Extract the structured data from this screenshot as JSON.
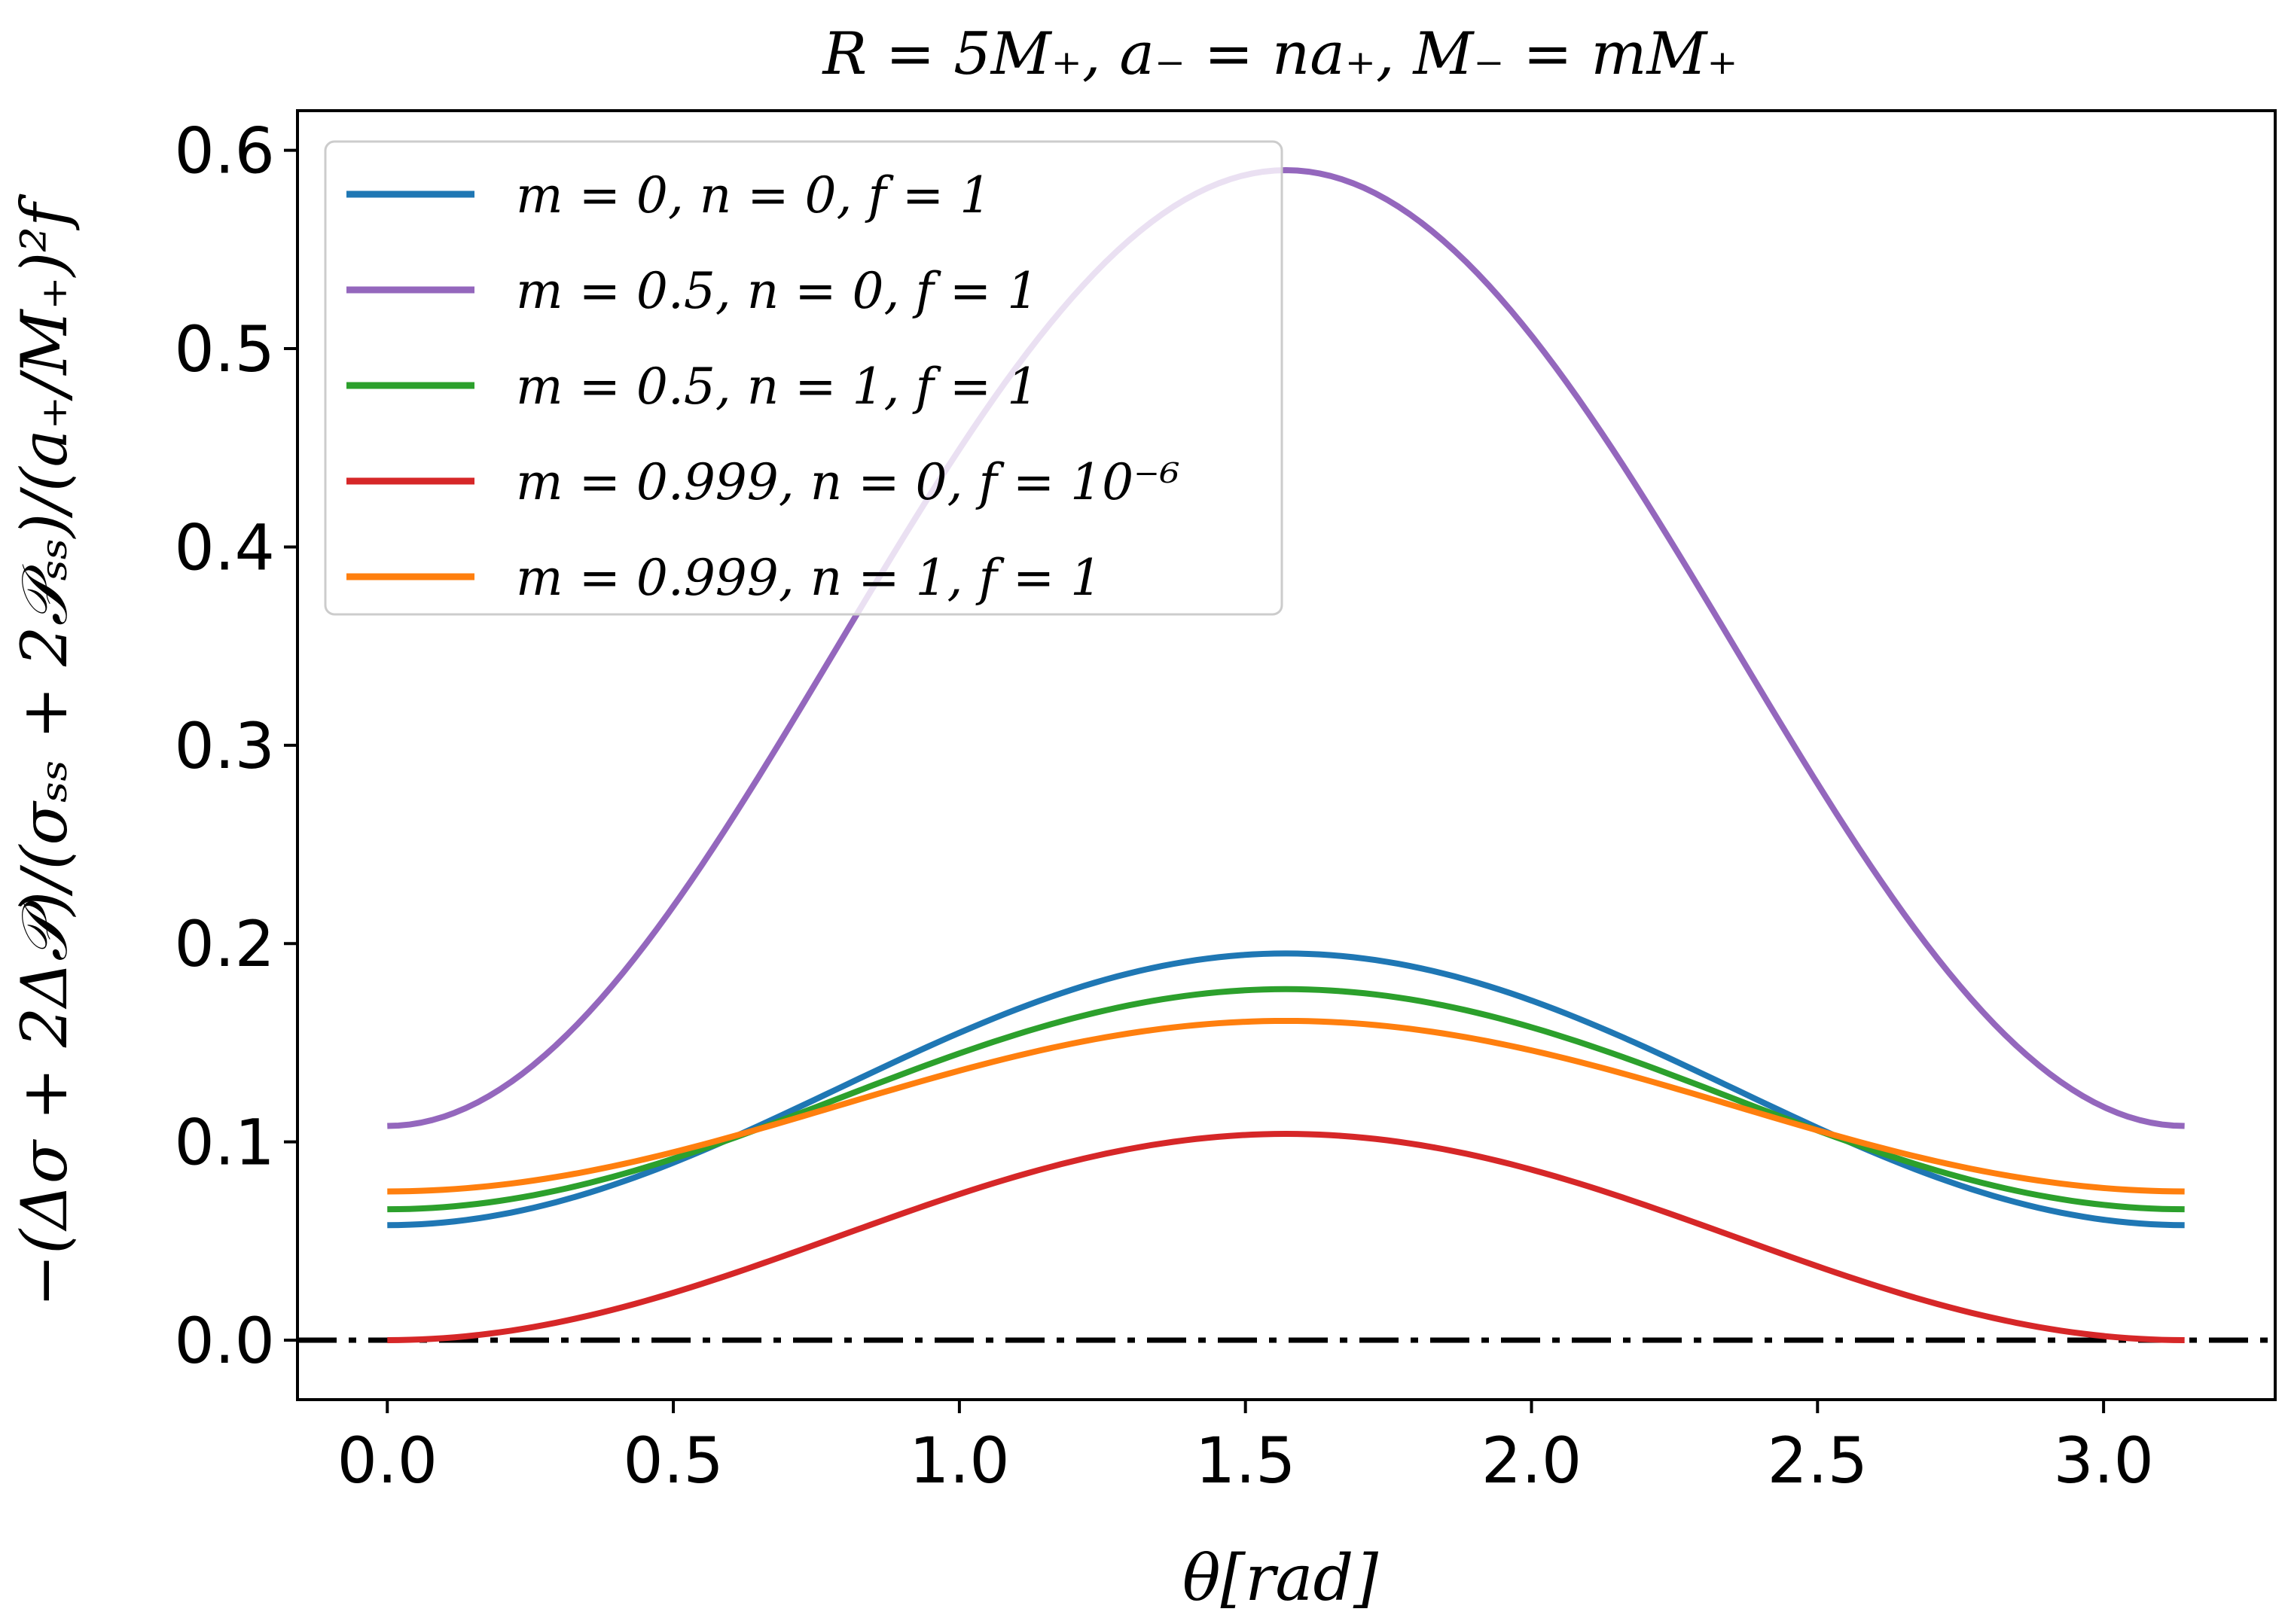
{
  "chart_data": {
    "type": "line",
    "title": "R = 5M₊, a₋ = na₊, M₋ = mM₊",
    "xlabel": "θ[rad]",
    "ylabel": "−(Δσ + 2Δ𝒫)/(σₛₛ + 2𝒫ₛₛ)/(a₊/M₊)²f",
    "xlim": [
      -0.157,
      3.3
    ],
    "ylim": [
      -0.03,
      0.62
    ],
    "x_range": [
      0,
      3.14159
    ],
    "xticks": [
      0.0,
      0.5,
      1.0,
      1.5,
      2.0,
      2.5,
      3.0
    ],
    "xtick_labels": [
      "0.0",
      "0.5",
      "1.0",
      "1.5",
      "2.0",
      "2.5",
      "3.0"
    ],
    "yticks": [
      0.0,
      0.1,
      0.2,
      0.3,
      0.4,
      0.5,
      0.6
    ],
    "ytick_labels": [
      "0.0",
      "0.1",
      "0.2",
      "0.3",
      "0.4",
      "0.5",
      "0.6"
    ],
    "legend_position": "top-left",
    "reference_line": {
      "y": 0.0,
      "style": "dash-dot",
      "color": "#000000"
    },
    "series": [
      {
        "name": "m = 0, n = 0, f = 1",
        "color": "#1f77b4",
        "endpoint": 0.058,
        "peak": 0.195,
        "shape": "sin2"
      },
      {
        "name": "m = 0.5, n = 0, f = 1",
        "color": "#9467bd",
        "endpoint": 0.108,
        "peak": 0.59,
        "shape": "sin2"
      },
      {
        "name": "m = 0.5, n = 1, f = 1",
        "color": "#2ca02c",
        "endpoint": 0.066,
        "peak": 0.177,
        "shape": "sin2"
      },
      {
        "name": "m = 0.999, n = 0, f = 10⁻⁶",
        "color": "#d62728",
        "endpoint": 0.0,
        "peak": 0.104,
        "shape": "sin2"
      },
      {
        "name": "m = 0.999, n = 1, f = 1",
        "color": "#ff7f0e",
        "endpoint": 0.075,
        "peak": 0.161,
        "shape": "sin2"
      }
    ]
  }
}
